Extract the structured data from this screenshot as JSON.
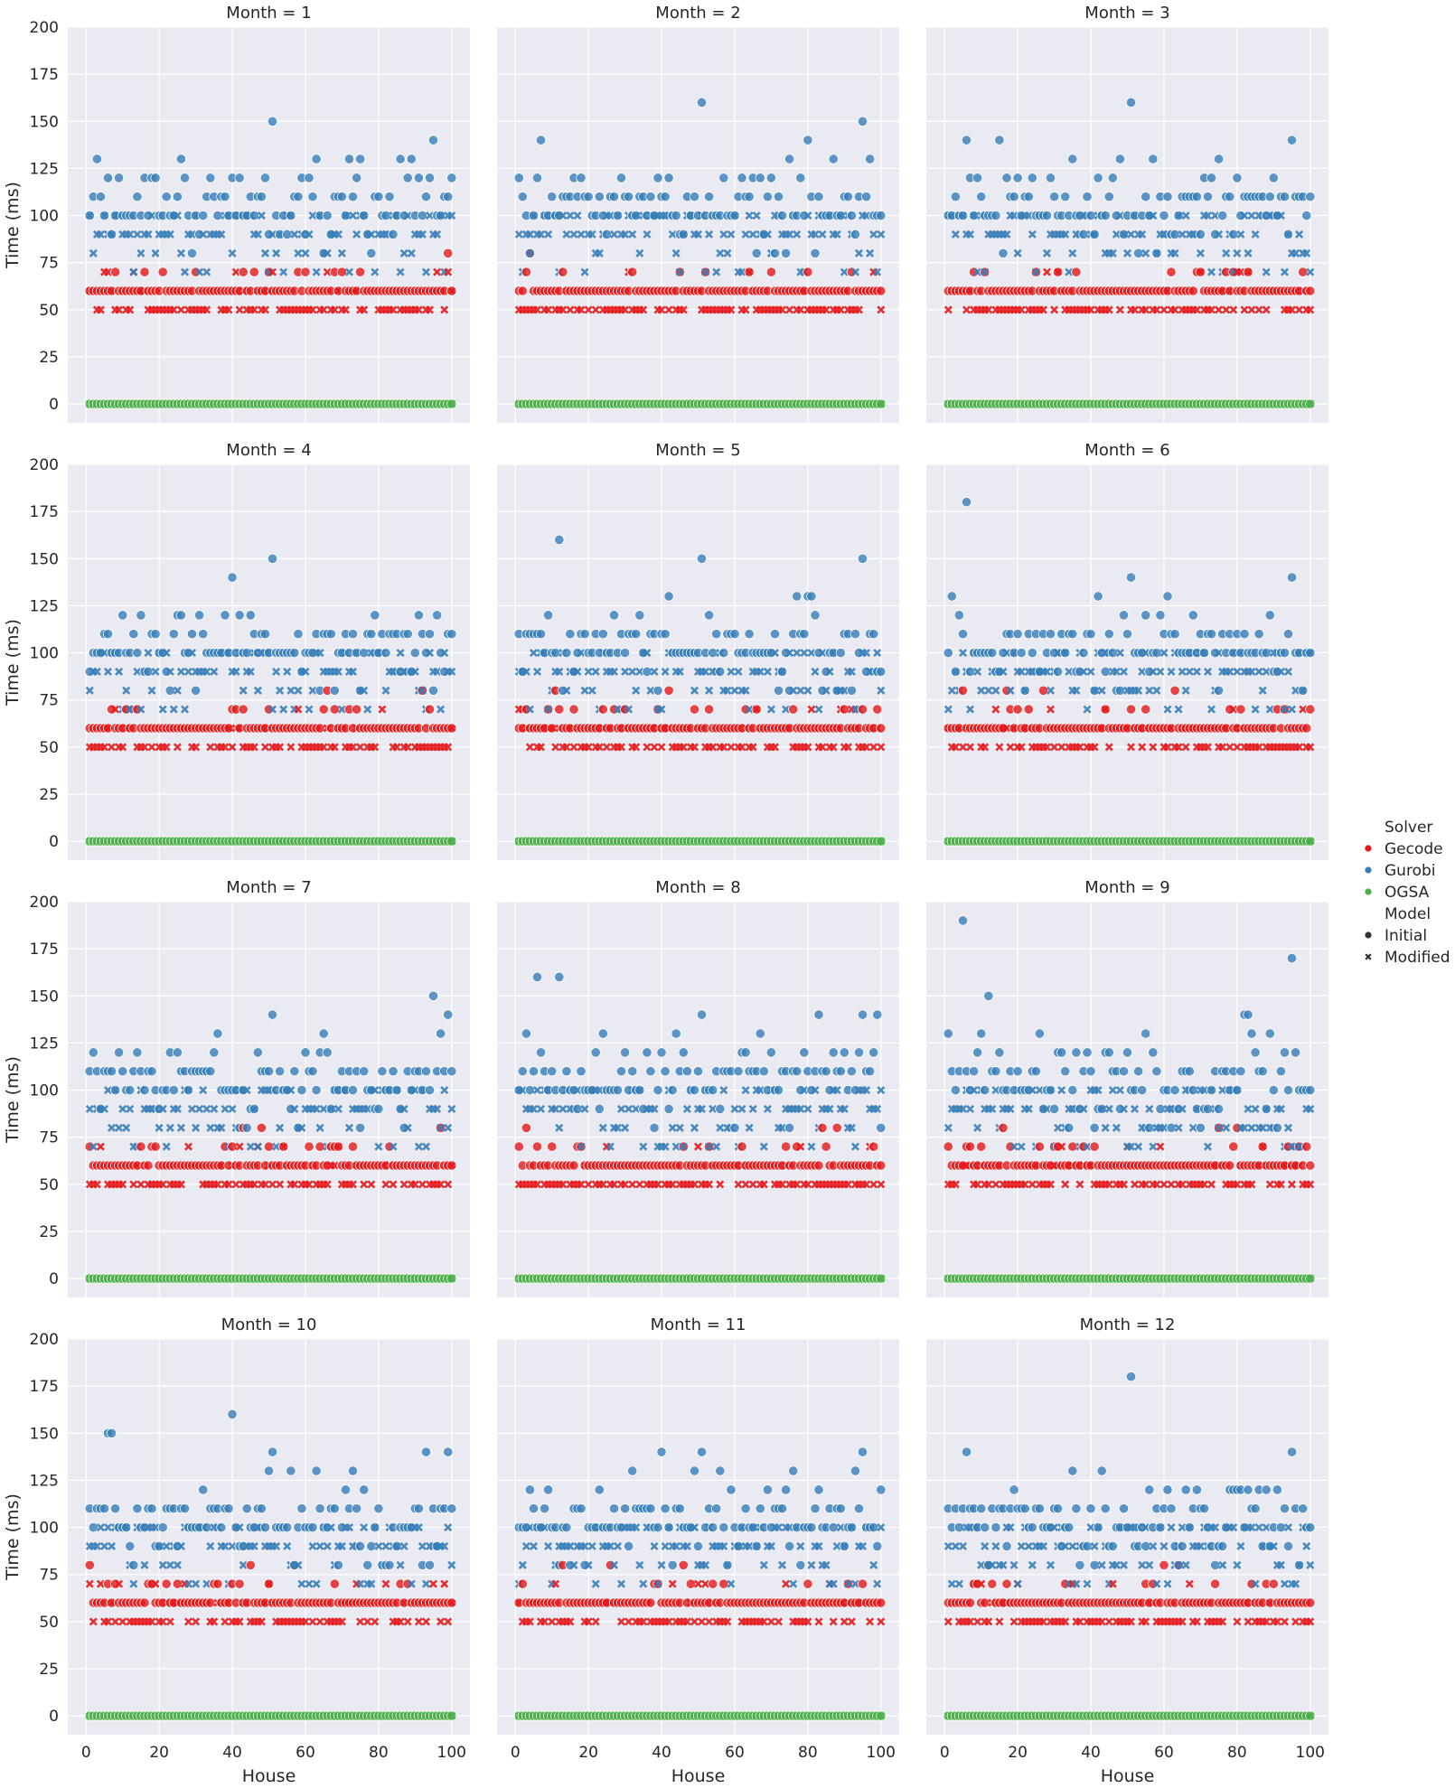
{
  "chart_data": {
    "type": "scatter",
    "facet_label": "Month",
    "xlabel": "House",
    "ylabel": "Time (ms)",
    "xlim": [
      -5,
      105
    ],
    "ylim": [
      -10,
      200
    ],
    "xticks": [
      0,
      20,
      40,
      60,
      80,
      100
    ],
    "yticks": [
      0,
      25,
      50,
      75,
      100,
      125,
      150,
      175,
      200
    ],
    "grid": true,
    "legend": {
      "placement": "right",
      "hue_title": "Solver",
      "solvers": [
        {
          "name": "Gecode",
          "color": "#e41a1c"
        },
        {
          "name": "Gurobi",
          "color": "#377eb8"
        },
        {
          "name": "OGSA",
          "color": "#4daf4a"
        }
      ],
      "style_title": "Model",
      "styles": [
        {
          "name": "Initial",
          "marker": "circle"
        },
        {
          "name": "Modified",
          "marker": "x"
        }
      ]
    },
    "panels": [
      {
        "month": 1,
        "title": "Month = 1",
        "outliers": [
          {
            "solver": "Gurobi",
            "model": "Initial",
            "points": [
              [
                51,
                150
              ],
              [
                95,
                140
              ]
            ]
          }
        ]
      },
      {
        "month": 2,
        "title": "Month = 2",
        "outliers": [
          {
            "solver": "Gurobi",
            "model": "Initial",
            "points": [
              [
                51,
                160
              ],
              [
                95,
                150
              ],
              [
                7,
                140
              ],
              [
                80,
                140
              ]
            ]
          }
        ]
      },
      {
        "month": 3,
        "title": "Month = 3",
        "outliers": [
          {
            "solver": "Gurobi",
            "model": "Initial",
            "points": [
              [
                51,
                160
              ],
              [
                6,
                140
              ],
              [
                15,
                140
              ],
              [
                95,
                140
              ]
            ]
          }
        ]
      },
      {
        "month": 4,
        "title": "Month = 4",
        "outliers": [
          {
            "solver": "Gurobi",
            "model": "Initial",
            "points": [
              [
                51,
                150
              ],
              [
                40,
                140
              ]
            ]
          }
        ]
      },
      {
        "month": 5,
        "title": "Month = 5",
        "outliers": [
          {
            "solver": "Gurobi",
            "model": "Initial",
            "points": [
              [
                12,
                160
              ],
              [
                51,
                150
              ],
              [
                95,
                150
              ]
            ]
          }
        ]
      },
      {
        "month": 6,
        "title": "Month = 6",
        "outliers": [
          {
            "solver": "Gurobi",
            "model": "Initial",
            "points": [
              [
                6,
                180
              ],
              [
                51,
                140
              ],
              [
                95,
                140
              ]
            ]
          }
        ]
      },
      {
        "month": 7,
        "title": "Month = 7",
        "outliers": [
          {
            "solver": "Gurobi",
            "model": "Initial",
            "points": [
              [
                95,
                150
              ],
              [
                51,
                140
              ],
              [
                99,
                140
              ]
            ]
          }
        ]
      },
      {
        "month": 8,
        "title": "Month = 8",
        "outliers": [
          {
            "solver": "Gurobi",
            "model": "Initial",
            "points": [
              [
                6,
                160
              ],
              [
                12,
                160
              ],
              [
                51,
                140
              ],
              [
                83,
                140
              ],
              [
                95,
                140
              ],
              [
                99,
                140
              ]
            ]
          }
        ]
      },
      {
        "month": 9,
        "title": "Month = 9",
        "outliers": [
          {
            "solver": "Gurobi",
            "model": "Initial",
            "points": [
              [
                5,
                190
              ],
              [
                95,
                170
              ],
              [
                12,
                150
              ],
              [
                82,
                140
              ],
              [
                83,
                140
              ]
            ]
          }
        ]
      },
      {
        "month": 10,
        "title": "Month = 10",
        "outliers": [
          {
            "solver": "Gurobi",
            "model": "Initial",
            "points": [
              [
                40,
                160
              ],
              [
                6,
                150
              ],
              [
                7,
                150
              ],
              [
                51,
                140
              ],
              [
                93,
                140
              ],
              [
                99,
                140
              ]
            ]
          }
        ]
      },
      {
        "month": 11,
        "title": "Month = 11",
        "outliers": [
          {
            "solver": "Gurobi",
            "model": "Initial",
            "points": [
              [
                40,
                140
              ],
              [
                51,
                140
              ],
              [
                95,
                140
              ]
            ]
          }
        ]
      },
      {
        "month": 12,
        "title": "Month = 12",
        "outliers": [
          {
            "solver": "Gurobi",
            "model": "Initial",
            "points": [
              [
                51,
                180
              ],
              [
                6,
                140
              ],
              [
                95,
                140
              ]
            ]
          }
        ]
      }
    ],
    "typical_values": {
      "OGSA": {
        "Initial": 0,
        "Modified": 0
      },
      "Gecode": {
        "Initial": [
          60,
          70,
          80
        ],
        "Modified": [
          50,
          60,
          70
        ]
      },
      "Gurobi": {
        "Initial": [
          80,
          90,
          100,
          110,
          120,
          130
        ],
        "Modified": [
          70,
          80,
          90,
          100
        ]
      }
    },
    "houses": [
      1,
      100
    ]
  }
}
